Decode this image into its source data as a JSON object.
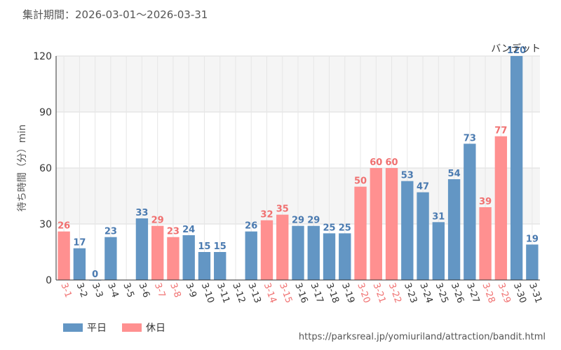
{
  "header": {
    "period": "集計期間：2026-03-01～2026-03-31"
  },
  "source_url": "https://parksreal.jp/yomiuriland/attraction/bandit.html",
  "colors": {
    "weekday": "#6396c4",
    "holiday": "#ff9090",
    "weekday_text": "#4a7ab0",
    "holiday_text": "#f07070"
  },
  "chart_data": {
    "type": "bar",
    "title": "",
    "series_name": "バンデット",
    "ylabel": "待ち時間（分）min",
    "xlabel": "",
    "ylim": [
      0,
      120
    ],
    "yticks": [
      0,
      30,
      60,
      90,
      120
    ],
    "grid": true,
    "legend": {
      "placement": "bottom-left",
      "entries": [
        {
          "label": "平日",
          "kind": "weekday"
        },
        {
          "label": "休日",
          "kind": "holiday"
        }
      ]
    },
    "categories": [
      "3-1",
      "3-2",
      "3-3",
      "3-4",
      "3-5",
      "3-6",
      "3-7",
      "3-8",
      "3-9",
      "3-10",
      "3-11",
      "3-12",
      "3-13",
      "3-14",
      "3-15",
      "3-16",
      "3-17",
      "3-18",
      "3-19",
      "3-20",
      "3-21",
      "3-22",
      "3-23",
      "3-24",
      "3-25",
      "3-26",
      "3-27",
      "3-28",
      "3-29",
      "3-30",
      "3-31"
    ],
    "values": [
      26,
      17,
      0,
      23,
      null,
      33,
      29,
      23,
      24,
      15,
      15,
      null,
      26,
      32,
      35,
      29,
      29,
      25,
      25,
      50,
      60,
      60,
      53,
      47,
      31,
      54,
      73,
      39,
      77,
      120,
      19
    ],
    "labels": [
      "26",
      "17",
      "0",
      "23",
      "",
      "33",
      "29",
      "23",
      "24",
      "15",
      "15",
      "",
      "26",
      "32",
      "35",
      "29",
      "29",
      "25",
      "25",
      "50",
      "60",
      "60",
      "53",
      "47",
      "31",
      "54",
      "73",
      "39",
      "77",
      "120",
      "19"
    ],
    "holiday": [
      true,
      false,
      false,
      false,
      false,
      false,
      true,
      true,
      false,
      false,
      false,
      false,
      false,
      true,
      true,
      false,
      false,
      false,
      false,
      true,
      true,
      true,
      false,
      false,
      false,
      false,
      false,
      true,
      true,
      false,
      false
    ]
  }
}
